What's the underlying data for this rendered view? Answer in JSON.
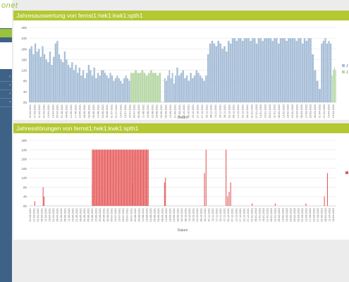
{
  "app": {
    "logo_text": "onet"
  },
  "colors": {
    "header_green": "#b3c832",
    "sidebar_blue": "#3d6286",
    "series1": "#a8bfd8",
    "series2": "#b8d8a8",
    "series3": "#e65a5a"
  },
  "chart_data": [
    {
      "type": "bar",
      "title": "Jahresauswertung von fernst1:hek1:kwk1:spth1",
      "xlabel": "Datum",
      "ylabel": "",
      "ylim": [
        0,
        28
      ],
      "y_ticks": [
        "0h",
        "4h",
        "8h",
        "12h",
        "16h",
        "20h",
        "24h",
        "28h"
      ],
      "x_ticks": [
        "22-03-2021",
        "27-03-2021",
        "01-04-2021",
        "07-04-2021",
        "13-04-2021",
        "19-04-2021",
        "25-04-2021",
        "01-05-2021",
        "06-05-2021",
        "12-05-2021",
        "17-05-2021",
        "23-05-2021",
        "28-05-2021",
        "03-06-2021",
        "09-06-2021",
        "14-06-2021",
        "20-06-2021",
        "26-06-2021",
        "01-07-2021",
        "07-07-2021",
        "13-07-2021",
        "19-07-2021",
        "24-07-2021",
        "30-07-2021",
        "05-08-2021",
        "11-08-2021",
        "16-08-2021",
        "22-08-2021",
        "28-08-2021",
        "03-09-2021",
        "09-09-2021",
        "15-09-2021",
        "21-09-2021",
        "27-09-2021",
        "03-10-2021",
        "09-10-2021",
        "15-10-2021",
        "21-10-2021",
        "27-10-2021",
        "02-11-2021",
        "08-11-2021",
        "14-11-2021",
        "20-11-2021",
        "26-11-2021",
        "02-12-2021",
        "08-12-2021",
        "14-12-2021",
        "20-12-2021",
        "26-12-2021",
        "01-01-2022",
        "07-01-2022",
        "13-01-2022",
        "19-01-2022",
        "25-01-2022",
        "31-01-2022",
        "06-02-2022",
        "12-02-2022",
        "18-02-2022",
        "24-02-2022",
        "02-03-2022",
        "08-03-2022",
        "14-03-2022",
        "20-03-2022",
        "26-03-2022",
        "01-04-2022",
        "07-04-2022",
        "13-04-2022",
        "19-04-2022"
      ],
      "legend_position": "right",
      "series": [
        {
          "name": "J",
          "color": "#a8bfd8",
          "segments": [
            {
              "from": 0.0,
              "to": 0.12,
              "values": [
                20,
                21,
                18,
                22,
                19,
                20,
                17,
                21,
                18,
                16,
                15,
                19,
                14,
                17,
                22,
                23,
                18,
                16,
                15,
                19
              ]
            },
            {
              "from": 0.12,
              "to": 0.24,
              "values": [
                16,
                14,
                13,
                15,
                12,
                14,
                11,
                13,
                10,
                12,
                9,
                11,
                14,
                12,
                10,
                13,
                9,
                11,
                10,
                12
              ]
            },
            {
              "from": 0.24,
              "to": 0.33,
              "values": [
                12,
                11,
                10,
                9,
                11,
                10,
                8,
                9,
                10,
                9,
                8,
                7,
                9,
                10,
                9,
                8
              ]
            },
            {
              "from": 0.44,
              "to": 0.48,
              "values": [
                9,
                8,
                10,
                12,
                9,
                11,
                7,
                10
              ]
            },
            {
              "from": 0.48,
              "to": 0.58,
              "values": [
                13,
                10,
                11,
                12,
                9,
                10,
                8,
                11,
                9,
                10,
                12,
                11,
                10,
                9,
                8,
                10
              ]
            },
            {
              "from": 0.58,
              "to": 0.66,
              "values": [
                18,
                22,
                23,
                22,
                21,
                23,
                22,
                20,
                21,
                19,
                23,
                22
              ]
            },
            {
              "from": 0.66,
              "to": 0.92,
              "values": [
                24,
                24,
                23,
                24,
                24,
                23,
                24,
                24,
                24,
                23,
                24,
                24,
                22,
                24,
                24,
                23,
                24,
                24,
                24,
                24,
                23,
                24,
                24,
                22,
                24,
                24,
                24,
                23,
                24,
                24,
                24,
                24,
                23,
                24,
                24,
                22,
                24,
                23,
                24,
                24
              ]
            },
            {
              "from": 0.92,
              "to": 0.95,
              "values": [
                18,
                12,
                8,
                5
              ]
            },
            {
              "from": 0.95,
              "to": 0.985,
              "values": [
                22,
                23,
                24,
                22,
                23,
                22
              ]
            }
          ]
        },
        {
          "name": "J",
          "color": "#b8d8a8",
          "segments": [
            {
              "from": 0.33,
              "to": 0.43,
              "values": [
                11,
                11,
                12,
                11,
                11,
                12,
                11,
                10,
                11,
                12,
                11,
                11,
                10,
                11
              ]
            },
            {
              "from": 0.985,
              "to": 1.0,
              "values": [
                10,
                12,
                13,
                12
              ]
            }
          ]
        }
      ]
    },
    {
      "type": "bar",
      "title": "Jahresstörungen von fernst1:hek1:kwk1:spth1",
      "xlabel": "Datum",
      "ylabel": "",
      "ylim": [
        0,
        28
      ],
      "y_ticks": [
        "0h",
        "4h",
        "8h",
        "12h",
        "16h",
        "20h",
        "24h",
        "28h"
      ],
      "x_ticks": [
        "22-03-2021",
        "27-03-2021",
        "01-04-2021",
        "06-04-2021",
        "11-04-2021",
        "16-04-2021",
        "21-04-2021",
        "26-04-2021",
        "01-05-2021",
        "06-05-2021",
        "11-05-2021",
        "16-05-2021",
        "21-05-2021",
        "26-05-2021",
        "31-05-2021",
        "05-06-2021",
        "10-06-2021",
        "15-06-2021",
        "20-06-2021",
        "25-06-2021",
        "30-06-2021",
        "05-07-2021",
        "10-07-2021",
        "15-07-2021",
        "20-07-2021",
        "25-07-2021",
        "30-07-2021",
        "04-08-2021",
        "09-08-2021",
        "14-08-2021",
        "19-08-2021",
        "24-08-2021",
        "29-08-2021",
        "03-09-2021",
        "08-09-2021",
        "13-09-2021",
        "18-09-2021",
        "23-09-2021",
        "28-09-2021",
        "03-10-2021",
        "08-10-2021",
        "13-10-2021",
        "18-10-2021",
        "23-10-2021",
        "28-10-2021",
        "02-11-2021",
        "07-11-2021",
        "12-11-2021",
        "17-11-2021",
        "22-11-2021",
        "27-11-2021",
        "02-12-2021",
        "07-12-2021",
        "12-12-2021",
        "17-12-2021",
        "22-12-2021",
        "27-12-2021",
        "01-01-2022",
        "06-01-2022",
        "11-01-2022",
        "16-01-2022",
        "21-01-2022",
        "26-01-2022",
        "31-01-2022",
        "05-02-2022",
        "10-02-2022",
        "15-02-2022",
        "20-02-2022",
        "25-02-2022",
        "02-03-2022",
        "07-03-2022",
        "12-03-2022",
        "17-03-2022",
        "22-03-2022",
        "27-03-2022",
        "01-04-2022",
        "06-04-2022",
        "11-04-2022",
        "16-04-2022"
      ],
      "legend_position": "right",
      "series": [
        {
          "name": "",
          "color": "#e65a5a",
          "bars": [
            {
              "pos": 0.018,
              "value": 2
            },
            {
              "pos": 0.045,
              "value": 8
            },
            {
              "pos": 0.048,
              "value": 4
            },
            {
              "pos": 0.205,
              "value": 9
            },
            {
              "pos": 0.335,
              "value": 10
            },
            {
              "pos": 0.44,
              "value": 10
            },
            {
              "pos": 0.443,
              "value": 12
            },
            {
              "pos": 0.57,
              "value": 14
            },
            {
              "pos": 0.575,
              "value": 24
            },
            {
              "pos": 0.64,
              "value": 24
            },
            {
              "pos": 0.645,
              "value": 4
            },
            {
              "pos": 0.65,
              "value": 6
            },
            {
              "pos": 0.655,
              "value": 10
            },
            {
              "pos": 0.725,
              "value": 1
            },
            {
              "pos": 0.8,
              "value": 1
            },
            {
              "pos": 0.9,
              "value": 1
            },
            {
              "pos": 0.96,
              "value": 4
            },
            {
              "pos": 0.97,
              "value": 14
            }
          ],
          "block": {
            "from": 0.205,
            "to": 0.39,
            "value": 24
          }
        }
      ]
    }
  ]
}
